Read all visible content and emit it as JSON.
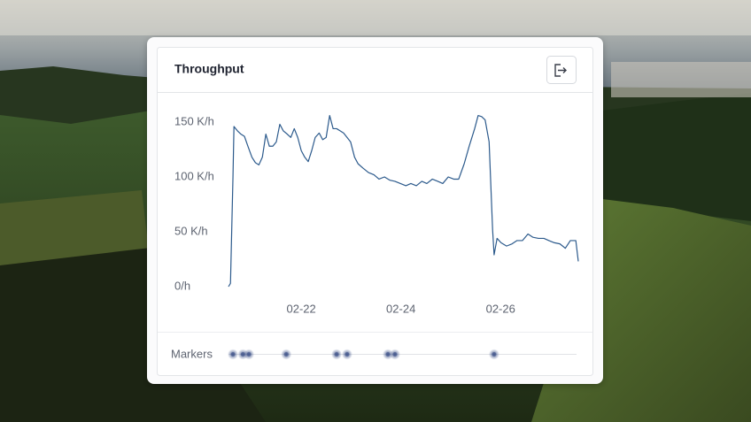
{
  "chart_data": {
    "type": "line",
    "title": "Throughput",
    "color": "#2c5a8c",
    "x": [
      20.54,
      20.58,
      20.63,
      20.65,
      20.72,
      20.79,
      20.86,
      20.93,
      21.01,
      21.08,
      21.15,
      21.22,
      21.29,
      21.36,
      21.43,
      21.5,
      21.57,
      21.64,
      21.72,
      21.79,
      21.86,
      21.93,
      22.0,
      22.07,
      22.14,
      22.21,
      22.28,
      22.36,
      22.43,
      22.5,
      22.57,
      22.64,
      22.71,
      22.78,
      22.85,
      22.92,
      22.99,
      23.07,
      23.14,
      23.24,
      23.35,
      23.46,
      23.56,
      23.67,
      23.78,
      23.88,
      23.99,
      24.1,
      24.2,
      24.31,
      24.42,
      24.52,
      24.63,
      24.74,
      24.84,
      24.95,
      25.06,
      25.16,
      25.27,
      25.37,
      25.48,
      25.55,
      25.62,
      25.69,
      25.77,
      25.84,
      25.87,
      25.93,
      26.01,
      26.12,
      26.23,
      26.33,
      26.44,
      26.55,
      26.65,
      26.76,
      26.87,
      26.97,
      27.08,
      27.19,
      27.3,
      27.4,
      27.51,
      27.56
    ],
    "values": [
      0,
      3,
      100,
      146,
      142,
      139,
      137,
      128,
      118,
      113,
      111,
      118,
      139,
      128,
      128,
      132,
      148,
      142,
      139,
      136,
      144,
      136,
      124,
      118,
      114,
      124,
      136,
      140,
      134,
      136,
      156,
      144,
      144,
      142,
      140,
      136,
      132,
      118,
      112,
      108,
      104,
      102,
      98,
      100,
      97,
      96,
      94,
      92,
      94,
      92,
      96,
      94,
      98,
      96,
      94,
      100,
      98,
      98,
      112,
      128,
      144,
      156,
      155,
      152,
      132,
      52,
      29,
      44,
      40,
      37,
      39,
      42,
      42,
      48,
      45,
      44,
      44,
      42,
      40,
      39,
      35,
      42,
      42,
      23
    ],
    "xlim": [
      20.54,
      27.56
    ],
    "xticks": [
      {
        "value": 22,
        "label": "02-22"
      },
      {
        "value": 24,
        "label": "02-24"
      },
      {
        "value": 26,
        "label": "02-26"
      }
    ],
    "ylim": [
      0,
      150
    ],
    "yticks": [
      {
        "value": 0,
        "label": "0/h"
      },
      {
        "value": 50,
        "label": "50 K/h"
      },
      {
        "value": 100,
        "label": "100 K/h"
      },
      {
        "value": 150,
        "label": "150 K/h"
      }
    ],
    "markers_label": "Markers",
    "markers": [
      20.63,
      20.83,
      20.95,
      21.7,
      22.71,
      22.92,
      23.74,
      23.88,
      25.87
    ],
    "marker_color": "#3a4f86"
  }
}
